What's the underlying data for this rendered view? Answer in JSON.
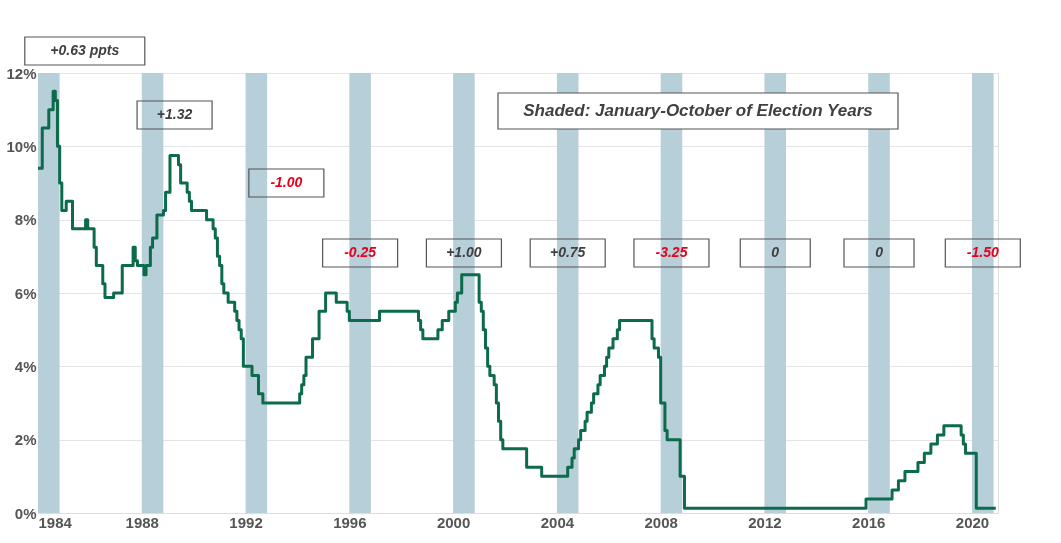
{
  "chart_data": {
    "type": "step",
    "x": [
      "1984-01",
      "1984-03",
      "1984-06",
      "1984-08",
      "1984-09",
      "1984-10",
      "1984-11",
      "1984-12",
      "1985-02",
      "1985-05",
      "1985-11",
      "1985-12",
      "1986-03",
      "1986-04",
      "1986-07",
      "1986-08",
      "1986-12",
      "1987-04",
      "1987-09",
      "1987-10",
      "1987-11",
      "1988-02",
      "1988-03",
      "1988-05",
      "1988-06",
      "1988-08",
      "1988-11",
      "1988-12",
      "1989-02",
      "1989-06",
      "1989-07",
      "1989-10",
      "1989-11",
      "1989-12",
      "1990-07",
      "1990-10",
      "1990-11",
      "1990-12",
      "1991-01",
      "1991-02",
      "1991-03",
      "1991-05",
      "1991-08",
      "1991-09",
      "1991-10",
      "1991-11",
      "1991-12",
      "1992-04",
      "1992-07",
      "1992-09",
      "1994-02",
      "1994-03",
      "1994-04",
      "1994-05",
      "1994-08",
      "1994-11",
      "1995-02",
      "1995-07",
      "1995-12",
      "1996-01",
      "1997-03",
      "1998-09",
      "1998-10",
      "1998-11",
      "1999-06",
      "1999-08",
      "1999-11",
      "2000-02",
      "2000-03",
      "2000-05",
      "2001-01",
      "2001-02",
      "2001-03",
      "2001-04",
      "2001-05",
      "2001-06",
      "2001-08",
      "2001-09",
      "2001-10",
      "2001-11",
      "2001-12",
      "2002-11",
      "2003-06",
      "2004-06",
      "2004-08",
      "2004-09",
      "2004-11",
      "2004-12",
      "2005-02",
      "2005-03",
      "2005-05",
      "2005-06",
      "2005-08",
      "2005-09",
      "2005-11",
      "2005-12",
      "2006-01",
      "2006-03",
      "2006-05",
      "2006-06",
      "2007-09",
      "2007-10",
      "2007-12",
      "2008-01",
      "2008-03",
      "2008-04",
      "2008-10",
      "2008-12",
      "2015-12",
      "2016-12",
      "2017-03",
      "2017-06",
      "2017-12",
      "2018-03",
      "2018-06",
      "2018-09",
      "2018-12",
      "2019-08",
      "2019-09",
      "2019-10",
      "2020-03",
      "2020-12"
    ],
    "series": [
      {
        "color": "#0b6b4a",
        "values": [
          9.4,
          10.5,
          11.0,
          11.5,
          11.25,
          10.0,
          9.0,
          8.25,
          8.5,
          7.75,
          8.0,
          7.75,
          7.25,
          6.75,
          6.25,
          5.88,
          6.0,
          6.75,
          7.25,
          6.88,
          6.75,
          6.5,
          6.75,
          7.25,
          7.5,
          8.13,
          8.25,
          8.75,
          9.75,
          9.5,
          9.0,
          8.75,
          8.5,
          8.25,
          8.0,
          7.75,
          7.5,
          7.0,
          6.75,
          6.25,
          6.0,
          5.75,
          5.5,
          5.25,
          5.0,
          4.75,
          4.0,
          3.75,
          3.25,
          3.0,
          3.25,
          3.5,
          3.75,
          4.25,
          4.75,
          5.5,
          6.0,
          5.75,
          5.5,
          5.25,
          5.5,
          5.25,
          5.0,
          4.75,
          5.0,
          5.25,
          5.5,
          5.75,
          6.0,
          6.5,
          5.75,
          5.5,
          5.0,
          4.5,
          4.0,
          3.75,
          3.5,
          3.0,
          2.5,
          2.0,
          1.75,
          1.25,
          1.0,
          1.25,
          1.5,
          1.75,
          2.0,
          2.25,
          2.5,
          2.75,
          3.0,
          3.25,
          3.5,
          3.75,
          4.0,
          4.25,
          4.5,
          4.75,
          5.0,
          5.25,
          4.75,
          4.5,
          4.25,
          3.0,
          2.25,
          2.0,
          1.0,
          0.13,
          0.38,
          0.63,
          0.88,
          1.13,
          1.38,
          1.63,
          1.88,
          2.13,
          2.38,
          2.13,
          1.88,
          1.63,
          0.13,
          0.13
        ]
      }
    ],
    "xlim": [
      "1984-01",
      "2021-01"
    ],
    "xticks": [
      "1984",
      "1988",
      "1992",
      "1996",
      "2000",
      "2004",
      "2008",
      "2012",
      "2016",
      "2020"
    ],
    "ylim": [
      0,
      12
    ],
    "yticks": [
      {
        "value": 0,
        "label": "0%"
      },
      {
        "value": 2,
        "label": "2%"
      },
      {
        "value": 4,
        "label": "4%"
      },
      {
        "value": 6,
        "label": "6%"
      },
      {
        "value": 8,
        "label": "8%"
      },
      {
        "value": 10,
        "label": "10%"
      },
      {
        "value": 12,
        "label": "12%"
      }
    ],
    "grid": "y",
    "bands": [
      {
        "axis": "x",
        "from": "1984-01",
        "to": "1984-10-31",
        "color": "#b7cfd9",
        "label": "+0.63 ppts"
      },
      {
        "axis": "x",
        "from": "1988-01",
        "to": "1988-10-31",
        "color": "#b7cfd9",
        "label": "+1.32"
      },
      {
        "axis": "x",
        "from": "1992-01",
        "to": "1992-10-31",
        "color": "#b7cfd9",
        "label": "-1.00"
      },
      {
        "axis": "x",
        "from": "1996-01",
        "to": "1996-10-31",
        "color": "#b7cfd9",
        "label": "-0.25"
      },
      {
        "axis": "x",
        "from": "2000-01",
        "to": "2000-10-31",
        "color": "#b7cfd9",
        "label": "+1.00"
      },
      {
        "axis": "x",
        "from": "2004-01",
        "to": "2004-10-31",
        "color": "#b7cfd9",
        "label": "+0.75"
      },
      {
        "axis": "x",
        "from": "2008-01",
        "to": "2008-10-31",
        "color": "#b7cfd9",
        "label": "-3.25"
      },
      {
        "axis": "x",
        "from": "2012-01",
        "to": "2012-10-31",
        "color": "#b7cfd9",
        "label": "0"
      },
      {
        "axis": "x",
        "from": "2016-01",
        "to": "2016-10-31",
        "color": "#b7cfd9",
        "label": "0"
      },
      {
        "axis": "x",
        "from": "2020-01",
        "to": "2020-10-31",
        "color": "#b7cfd9",
        "label": "-1.50"
      }
    ],
    "annotations": [
      "Shaded: January-October of Election Years"
    ]
  }
}
